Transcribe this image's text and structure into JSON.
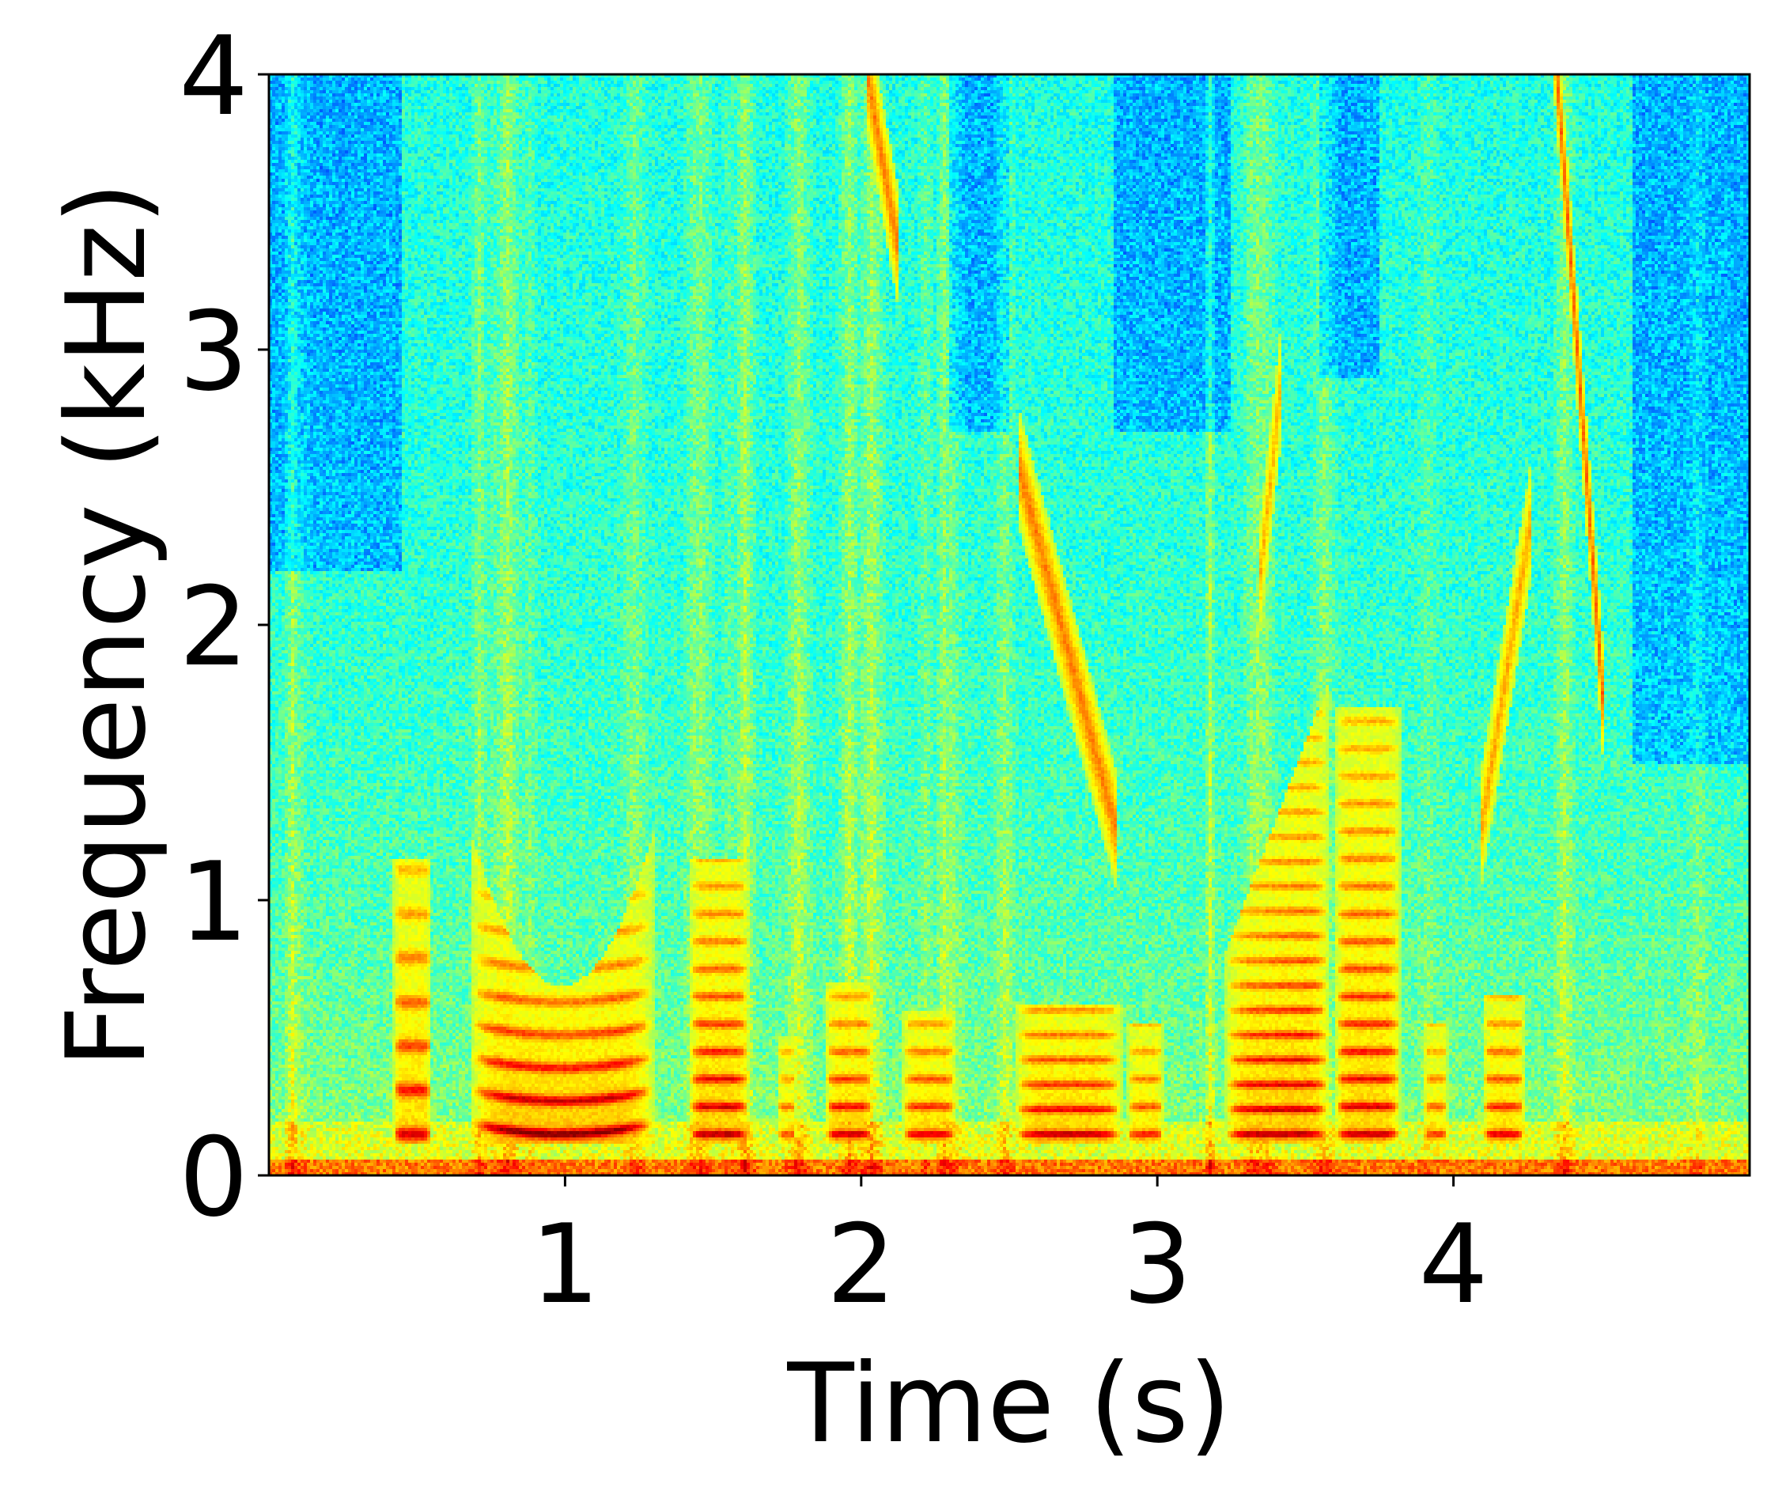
{
  "chart_data": {
    "type": "heatmap",
    "title": "",
    "xlabel": "Time (s)",
    "ylabel": "Frequency (kHz)",
    "xlim": [
      0,
      5
    ],
    "ylim": [
      0,
      4
    ],
    "x_ticks": [
      1,
      2,
      3,
      4
    ],
    "x_tick_labels": [
      "1",
      "2",
      "3",
      "4"
    ],
    "y_ticks": [
      0,
      1,
      2,
      3,
      4
    ],
    "y_tick_labels": [
      "0",
      "1",
      "2",
      "3",
      "4"
    ],
    "colormap": "jet",
    "grid": false,
    "legend": "none",
    "events": [
      {
        "t0": 0.42,
        "t1": 0.55,
        "fmax": 1.15,
        "strength": 0.75,
        "harmonic_spacing": 0.16,
        "shape": "flat"
      },
      {
        "t0": 0.68,
        "t1": 1.3,
        "fmax": 1.25,
        "strength": 0.95,
        "harmonic_spacing": 0.12,
        "shape": "dip"
      },
      {
        "t0": 1.42,
        "t1": 1.62,
        "fmax": 1.15,
        "strength": 0.85,
        "harmonic_spacing": 0.1,
        "shape": "flat"
      },
      {
        "t0": 1.72,
        "t1": 1.78,
        "fmax": 0.5,
        "strength": 0.55,
        "harmonic_spacing": 0.1,
        "shape": "flat"
      },
      {
        "t0": 1.88,
        "t1": 2.04,
        "fmax": 0.7,
        "strength": 0.8,
        "harmonic_spacing": 0.1,
        "shape": "flat"
      },
      {
        "t0": 2.14,
        "t1": 2.32,
        "fmax": 0.6,
        "strength": 0.75,
        "harmonic_spacing": 0.1,
        "shape": "flat"
      },
      {
        "t0": 2.52,
        "t1": 2.88,
        "fmax": 0.62,
        "strength": 0.85,
        "harmonic_spacing": 0.09,
        "shape": "flat"
      },
      {
        "t0": 2.9,
        "t1": 3.02,
        "fmax": 0.55,
        "strength": 0.65,
        "harmonic_spacing": 0.1,
        "shape": "flat"
      },
      {
        "t0": 3.23,
        "t1": 3.58,
        "fmax": 1.8,
        "strength": 0.85,
        "harmonic_spacing": 0.09,
        "shape": "rise"
      },
      {
        "t0": 3.6,
        "t1": 3.82,
        "fmax": 1.7,
        "strength": 0.8,
        "harmonic_spacing": 0.1,
        "shape": "flat"
      },
      {
        "t0": 3.9,
        "t1": 3.98,
        "fmax": 0.55,
        "strength": 0.6,
        "harmonic_spacing": 0.1,
        "shape": "flat"
      },
      {
        "t0": 4.1,
        "t1": 4.24,
        "fmax": 0.65,
        "strength": 0.75,
        "harmonic_spacing": 0.1,
        "shape": "flat"
      }
    ],
    "sweeps": [
      {
        "t_start": 2.55,
        "f_start": 2.5,
        "t_end": 2.85,
        "f_end": 1.3,
        "strength": 0.7
      },
      {
        "t_start": 2.02,
        "f_start": 4.0,
        "t_end": 2.12,
        "f_end": 3.4,
        "strength": 0.7
      },
      {
        "t_start": 4.35,
        "f_start": 4.0,
        "t_end": 4.5,
        "f_end": 1.8,
        "strength": 0.8
      },
      {
        "t_start": 4.25,
        "f_start": 2.3,
        "t_end": 4.1,
        "f_end": 1.3,
        "strength": 0.55
      },
      {
        "t_start": 3.42,
        "f_start": 2.9,
        "t_end": 3.35,
        "f_end": 2.2,
        "strength": 0.5
      }
    ],
    "quiet_regions": [
      {
        "t0": 0.0,
        "t1": 0.45,
        "f0": 2.2,
        "f1": 4.0
      },
      {
        "t0": 2.3,
        "t1": 2.5,
        "f0": 2.7,
        "f1": 4.0
      },
      {
        "t0": 2.85,
        "t1": 3.25,
        "f0": 2.7,
        "f1": 4.0
      },
      {
        "t0": 3.55,
        "t1": 3.75,
        "f0": 2.9,
        "f1": 4.0
      },
      {
        "t0": 4.6,
        "t1": 5.0,
        "f0": 1.5,
        "f1": 4.0
      }
    ]
  }
}
